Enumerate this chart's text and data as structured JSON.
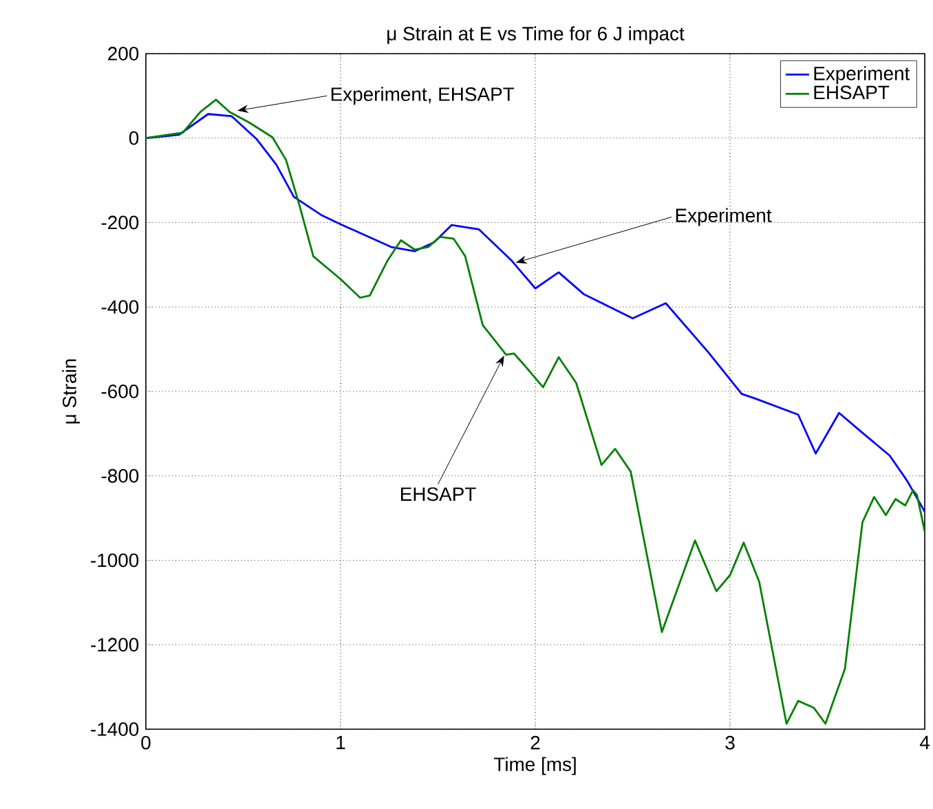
{
  "chart_data": {
    "type": "line",
    "title": "μ Strain at E vs Time for 6 J impact",
    "xlabel": "Time [ms]",
    "ylabel": "μ Strain",
    "xlim": [
      0,
      4
    ],
    "ylim": [
      -1400,
      200
    ],
    "xticks": [
      0,
      1,
      2,
      3,
      4
    ],
    "yticks": [
      -1400,
      -1200,
      -1000,
      -800,
      -600,
      -400,
      -200,
      0,
      200
    ],
    "grid": true,
    "legend": "top right",
    "annotations": [
      {
        "text": "Experiment, EHSAPT",
        "x": 0.47,
        "y": 65
      },
      {
        "text": "Experiment",
        "x": 1.9,
        "y": -295
      },
      {
        "text": "EHSAPT",
        "x": 1.84,
        "y": -515
      }
    ],
    "series": [
      {
        "name": "Experiment",
        "color": "#0000ff",
        "x": [
          0,
          0.17,
          0.32,
          0.44,
          0.57,
          0.67,
          0.76,
          0.9,
          1.0,
          1.26,
          1.38,
          1.48,
          1.57,
          1.71,
          1.88,
          2.0,
          2.12,
          2.25,
          2.5,
          2.67,
          2.89,
          3.06,
          3.13,
          3.35,
          3.44,
          3.56,
          3.68,
          3.82,
          3.91,
          4.0
        ],
        "values": [
          0,
          8,
          57,
          52,
          -3,
          -63,
          -139,
          -182,
          -204,
          -258,
          -268,
          -247,
          -206,
          -216,
          -291,
          -356,
          -318,
          -370,
          -427,
          -391,
          -508,
          -606,
          -617,
          -655,
          -747,
          -651,
          -698,
          -752,
          -812,
          -885
        ]
      },
      {
        "name": "EHSAPT",
        "color": "#008000",
        "x": [
          0,
          0.19,
          0.28,
          0.36,
          0.43,
          0.53,
          0.65,
          0.72,
          0.79,
          0.86,
          1.0,
          1.1,
          1.15,
          1.24,
          1.31,
          1.38,
          1.45,
          1.51,
          1.58,
          1.64,
          1.73,
          1.85,
          1.89,
          1.95,
          2.04,
          2.12,
          2.21,
          2.34,
          2.41,
          2.49,
          2.65,
          2.82,
          2.93,
          3.0,
          3.07,
          3.15,
          3.29,
          3.35,
          3.43,
          3.49,
          3.59,
          3.68,
          3.74,
          3.8,
          3.85,
          3.9,
          3.94,
          3.96,
          4.0
        ],
        "values": [
          0,
          13,
          62,
          91,
          62,
          37,
          2,
          -52,
          -161,
          -280,
          -334,
          -378,
          -373,
          -291,
          -242,
          -264,
          -258,
          -234,
          -238,
          -280,
          -443,
          -513,
          -510,
          -541,
          -590,
          -519,
          -580,
          -774,
          -736,
          -790,
          -1170,
          -953,
          -1073,
          -1035,
          -958,
          -1051,
          -1387,
          -1333,
          -1349,
          -1387,
          -1257,
          -910,
          -850,
          -893,
          -855,
          -870,
          -834,
          -845,
          -932
        ]
      }
    ]
  }
}
